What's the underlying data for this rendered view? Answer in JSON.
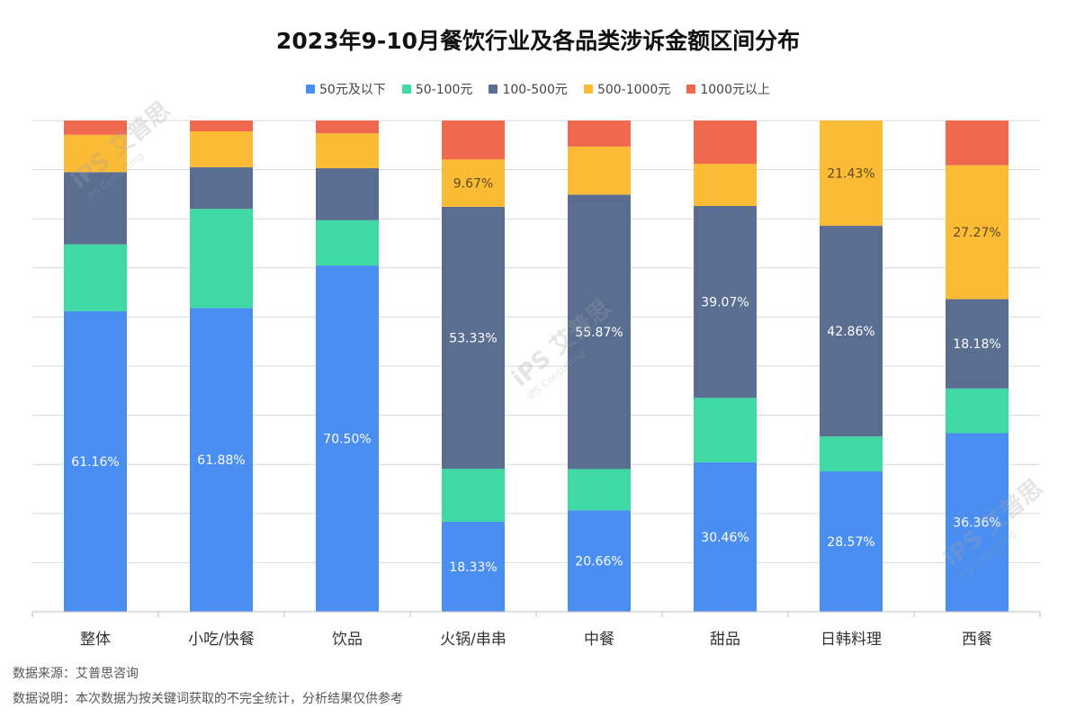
{
  "title": "2023年9-10月餐饮行业及各品类涉诉金额区间分布",
  "footer": {
    "source": "数据来源：艾普思咨询",
    "note": "数据说明：本次数据为按关键词获取的不完全统计，分析结果仅供参考"
  },
  "watermark": {
    "logo": "iPS 艾普思",
    "sub": "IPS Consulting"
  },
  "colors": {
    "s1": "#4b8ef1",
    "s2": "#3fd9a6",
    "s3": "#5a6e91",
    "s4": "#fbbb35",
    "s5": "#f0694e",
    "grid": "#d9d9d9"
  },
  "chart_data": {
    "type": "bar",
    "stacked": true,
    "title": "2023年9-10月餐饮行业及各品类涉诉金额区间分布",
    "ylim": [
      0,
      100
    ],
    "grid": true,
    "legend_position": "top",
    "categories": [
      "整体",
      "小吃/快餐",
      "饮品",
      "火锅/串串",
      "中餐",
      "甜品",
      "日韩料理",
      "西餐"
    ],
    "series": [
      {
        "name": "50元及以下",
        "color": "#4b8ef1",
        "values": [
          61.16,
          61.88,
          70.5,
          18.33,
          20.66,
          30.46,
          28.57,
          36.36
        ],
        "labels": [
          "61.16%",
          "61.88%",
          "70.50%",
          "18.33%",
          "20.66%",
          "30.46%",
          "28.57%",
          "36.36%"
        ]
      },
      {
        "name": "50-100元",
        "color": "#3fd9a6",
        "values": [
          13.6,
          20.2,
          9.2,
          10.8,
          8.4,
          13.1,
          7.1,
          9.1
        ],
        "labels": [
          "",
          "",
          "",
          "",
          "",
          "",
          "",
          ""
        ]
      },
      {
        "name": "100-500元",
        "color": "#5a6e91",
        "values": [
          14.7,
          8.5,
          10.6,
          53.33,
          55.87,
          39.07,
          42.86,
          18.18
        ],
        "labels": [
          "",
          "",
          "",
          "53.33%",
          "55.87%",
          "39.07%",
          "42.86%",
          "18.18%"
        ]
      },
      {
        "name": "500-1000元",
        "color": "#fbbb35",
        "values": [
          7.6,
          7.3,
          7.1,
          9.67,
          9.8,
          8.6,
          21.43,
          27.27
        ],
        "labels": [
          "",
          "",
          "",
          "9.67%",
          "",
          "",
          "21.43%",
          "27.27%"
        ]
      },
      {
        "name": "1000元以上",
        "color": "#f0694e",
        "values": [
          2.9,
          2.2,
          2.6,
          7.9,
          5.3,
          8.8,
          0,
          9.1
        ],
        "labels": [
          "",
          "",
          "",
          "",
          "",
          "",
          "",
          ""
        ]
      }
    ]
  }
}
